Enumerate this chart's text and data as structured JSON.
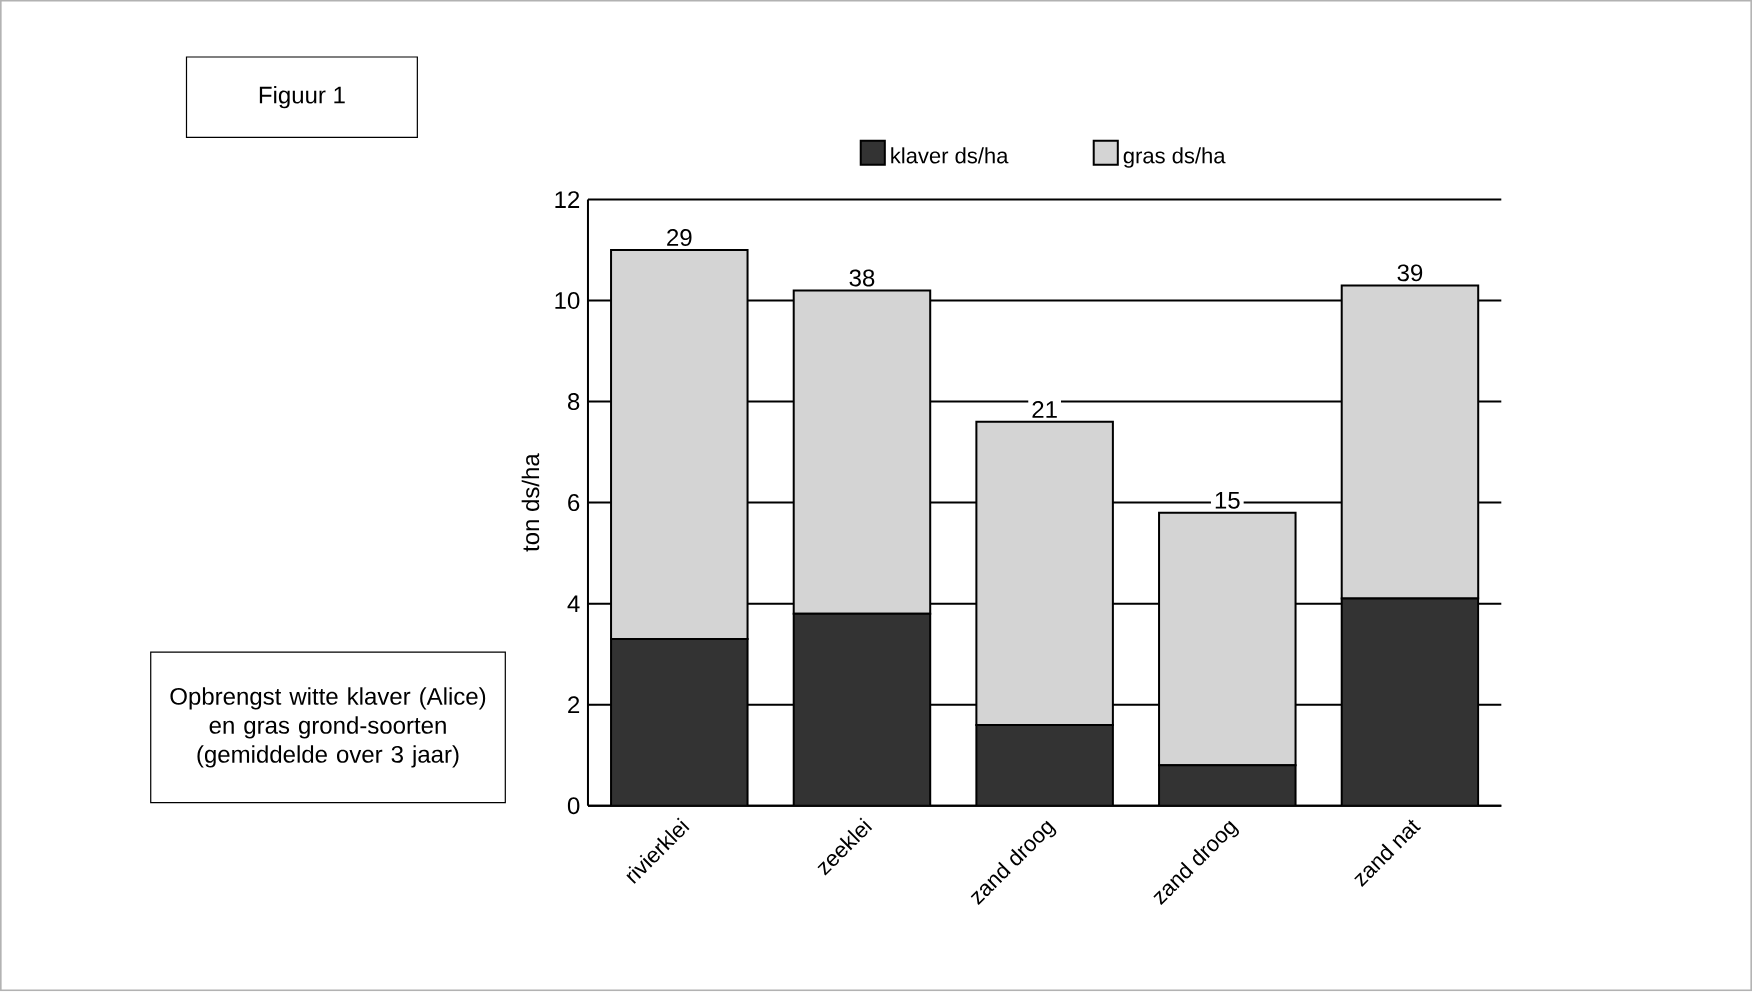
{
  "chart_data": {
    "type": "bar",
    "title": "Figuur 1",
    "ylabel": "ton ds/ha",
    "stacked": true,
    "categories": [
      "rivierklei",
      "zeeklei",
      "zand droog",
      "zand droog",
      "zand nat"
    ],
    "series": [
      {
        "name": "klaver ds/ha",
        "color": "#333333",
        "values": [
          3.3,
          3.8,
          1.6,
          0.8,
          4.1
        ]
      },
      {
        "name": "gras ds/ha",
        "color": "#d4d4d4",
        "values": [
          7.7,
          6.4,
          6.0,
          5.0,
          6.2
        ]
      }
    ],
    "ylim": [
      0,
      12
    ],
    "yticks": [
      0,
      2,
      4,
      6,
      8,
      10,
      12
    ],
    "grid": "y",
    "legend": "top",
    "annotations": [
      "29",
      "38",
      "21",
      "15",
      "39",
      "Opbrengst witte  klaver (Alice) en gras grond-soorten  (gemiddelde over 3 jaar)"
    ]
  }
}
